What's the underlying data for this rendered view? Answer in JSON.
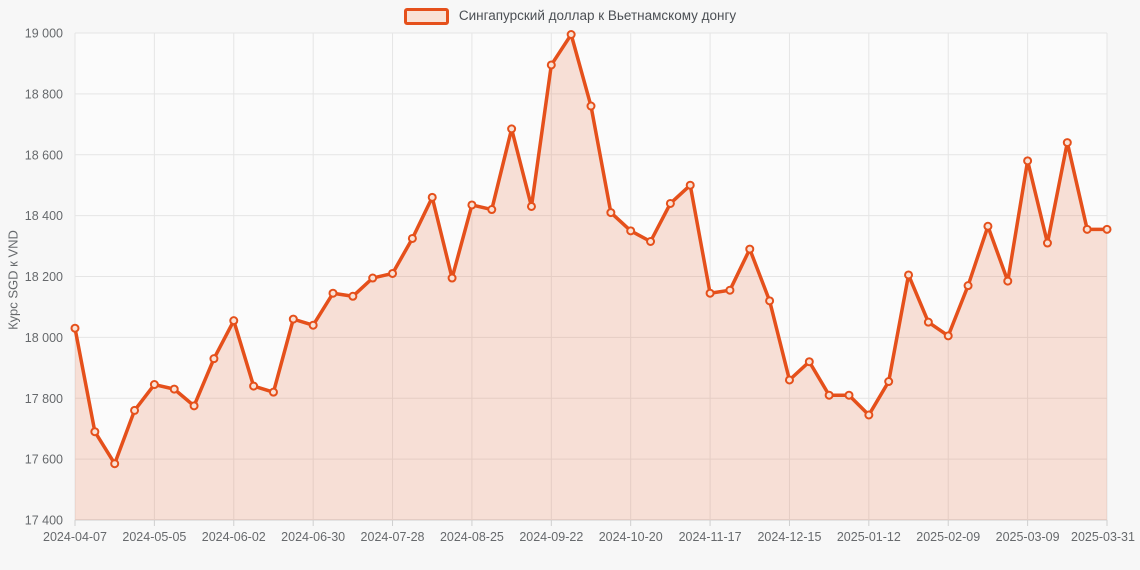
{
  "legend": {
    "label": "Сингапурский доллар к Вьетнамскому донгу"
  },
  "y_axis": {
    "title": "Курс SGD к VND"
  },
  "chart_data": {
    "type": "area",
    "title": "",
    "xlabel": "",
    "ylabel": "Курс SGD к VND",
    "ylim": [
      17400,
      19000
    ],
    "ytick_step": 200,
    "ytick_labels": [
      "17 400",
      "17 600",
      "17 800",
      "18 000",
      "18 200",
      "18 400",
      "18 600",
      "18 800",
      "19 000"
    ],
    "grid": true,
    "legend_position": "top-center",
    "series": [
      {
        "name": "Сингапурский доллар к Вьетнамскому донгу",
        "x": [
          "2024-04-07",
          "2024-04-14",
          "2024-04-21",
          "2024-04-28",
          "2024-05-05",
          "2024-05-12",
          "2024-05-19",
          "2024-05-26",
          "2024-06-02",
          "2024-06-09",
          "2024-06-16",
          "2024-06-23",
          "2024-06-30",
          "2024-07-07",
          "2024-07-14",
          "2024-07-21",
          "2024-07-28",
          "2024-08-04",
          "2024-08-11",
          "2024-08-18",
          "2024-08-25",
          "2024-09-01",
          "2024-09-08",
          "2024-09-15",
          "2024-09-22",
          "2024-09-29",
          "2024-10-06",
          "2024-10-13",
          "2024-10-20",
          "2024-10-27",
          "2024-11-03",
          "2024-11-10",
          "2024-11-17",
          "2024-11-24",
          "2024-12-01",
          "2024-12-08",
          "2024-12-15",
          "2024-12-22",
          "2024-12-29",
          "2025-01-05",
          "2025-01-12",
          "2025-01-19",
          "2025-01-26",
          "2025-02-02",
          "2025-02-09",
          "2025-02-16",
          "2025-02-23",
          "2025-03-02",
          "2025-03-09",
          "2025-03-16",
          "2025-03-23",
          "2025-03-30",
          "2025-03-31"
        ],
        "values": [
          18030,
          17690,
          17585,
          17760,
          17845,
          17830,
          17775,
          17930,
          18055,
          17840,
          17820,
          18060,
          18040,
          18145,
          18135,
          18195,
          18210,
          18325,
          18460,
          18195,
          18435,
          18420,
          18685,
          18430,
          18895,
          18995,
          18760,
          18410,
          18350,
          18315,
          18440,
          18500,
          18145,
          18155,
          18290,
          18120,
          17860,
          17920,
          17810,
          17810,
          17745,
          17855,
          18205,
          18050,
          18005,
          18170,
          18365,
          18185,
          18580,
          18310,
          18640,
          18355,
          18355
        ]
      }
    ],
    "xtick_indices": [
      0,
      4,
      8,
      12,
      16,
      20,
      24,
      28,
      32,
      36,
      40,
      44,
      48,
      52
    ],
    "xtick_labels": [
      "2024-04-07",
      "2024-05-05",
      "2024-06-02",
      "2024-06-30",
      "2024-07-28",
      "2024-08-25",
      "2024-09-22",
      "2024-10-20",
      "2024-11-17",
      "2024-12-15",
      "2025-01-12",
      "2025-02-09",
      "2025-03-09",
      "2025-03-31"
    ],
    "colors": {
      "line": "#e5501b",
      "area_fill": "rgba(229,80,27,0.16)",
      "marker_fill": "#f9e2d6",
      "grid": "#e5e5e5",
      "axis_line": "#cfcfcf",
      "tick_text": "#66696c",
      "legend_text": "#4c5055",
      "page_bg": "#f7f7f7",
      "plot_bg": "#fbfbfb"
    }
  }
}
